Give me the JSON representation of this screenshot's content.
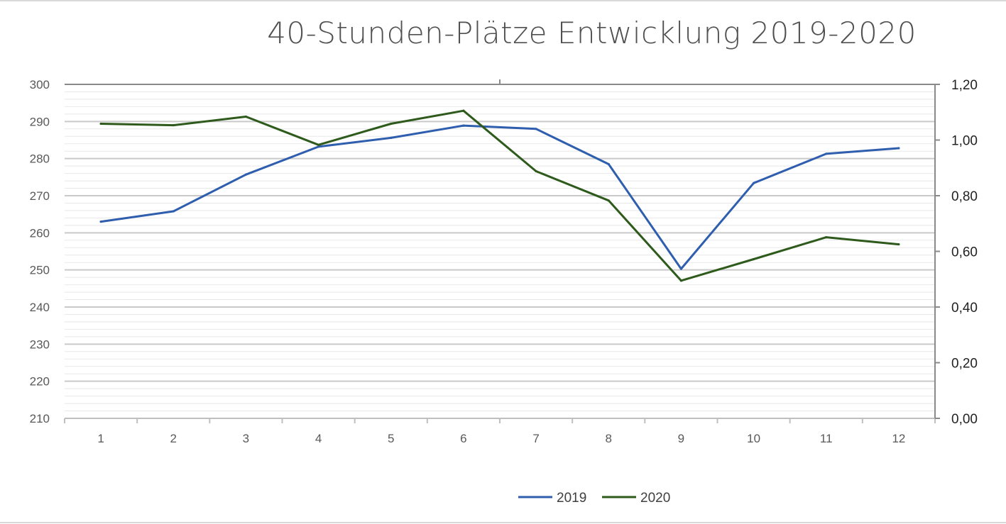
{
  "chart_data": {
    "type": "line",
    "title": "40-Stunden-Plätze Entwicklung 2019-2020",
    "categories": [
      "1",
      "2",
      "3",
      "4",
      "5",
      "6",
      "7",
      "8",
      "9",
      "10",
      "11",
      "12"
    ],
    "y_left": {
      "min": 210,
      "max": 300,
      "ticks": [
        "210",
        "220",
        "230",
        "240",
        "250",
        "260",
        "270",
        "280",
        "290",
        "300"
      ]
    },
    "y_right": {
      "min": 0,
      "max": 1.2,
      "ticks": [
        "0,00",
        "0,20",
        "0,40",
        "0,60",
        "0,80",
        "1,00",
        "1,20"
      ]
    },
    "series": [
      {
        "name": "2019",
        "color": "#2f5eae",
        "axis": "left",
        "values": [
          263,
          265.8,
          275.7,
          283.2,
          285.6,
          288.9,
          288.0,
          278.5,
          250.3,
          273.4,
          281.3,
          282.8
        ]
      },
      {
        "name": "2020",
        "color": "#2e5a1c",
        "axis": "left",
        "values": [
          289.4,
          289.0,
          291.3,
          283.7,
          289.4,
          292.9,
          276.6,
          268.7,
          247.1,
          252.9,
          258.8,
          256.9
        ]
      }
    ],
    "grid": true,
    "legend": "bottom-center"
  }
}
